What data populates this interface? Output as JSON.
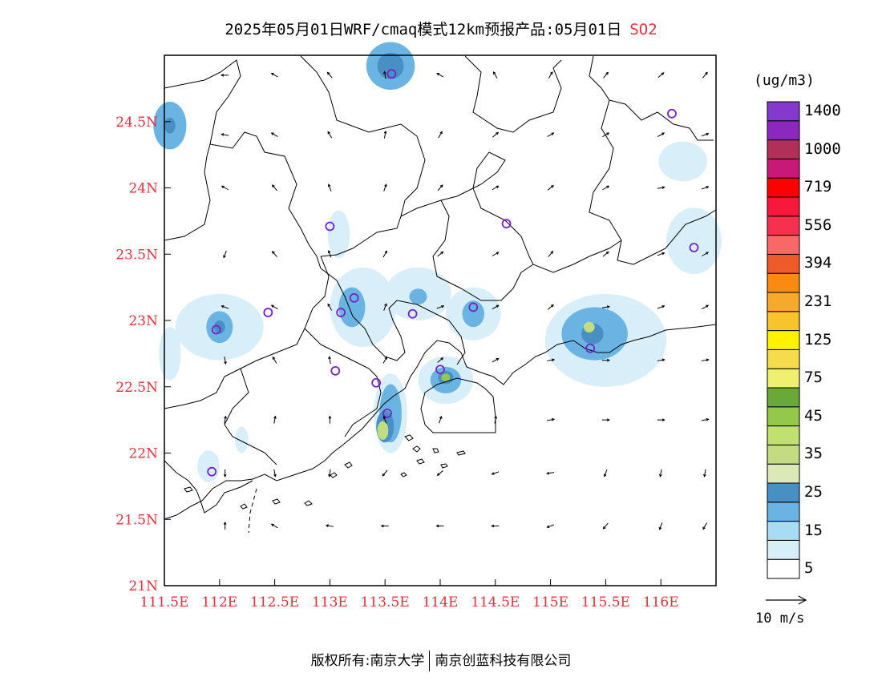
{
  "title": {
    "main": "2025年05月01日WRF/cmaq模式12km预报产品:05月01日",
    "pollutant": "SO2"
  },
  "axes": {
    "x_labels": [
      "111.5E",
      "112E",
      "112.5E",
      "113E",
      "113.5E",
      "114E",
      "114.5E",
      "115E",
      "115.5E",
      "116E"
    ],
    "y_labels": [
      "24.5N",
      "24N",
      "23.5N",
      "23N",
      "22.5N",
      "22N",
      "21.5N",
      "21N"
    ],
    "lon_range": [
      111.5,
      116.5
    ],
    "lat_range": [
      21.0,
      25.0
    ]
  },
  "legend": {
    "unit": "(ug/m3)",
    "labels": [
      "1400",
      "1000",
      "719",
      "556",
      "394",
      "231",
      "125",
      "75",
      "45",
      "35",
      "25",
      "15",
      "5"
    ],
    "colors": [
      "#ffffff",
      "#d8eef8",
      "#a8dcf4",
      "#6ab4e4",
      "#4890c4",
      "#dbe8b8",
      "#c3dc82",
      "#c0e070",
      "#94c84a",
      "#6aa83a",
      "#f0f070",
      "#f6dc4a",
      "#fef200",
      "#f8c42c",
      "#f8a82a",
      "#fa8a10",
      "#ee5a28",
      "#f86868",
      "#f83050",
      "#f8183c",
      "#ff0000",
      "#c81878",
      "#b0305a",
      "#8c28c0",
      "#8438cc"
    ]
  },
  "wind_reference": "10 m/s",
  "footer": {
    "left": "版权所有:南京大学",
    "right": "南京创蓝科技有限公司"
  },
  "colors": {
    "accent": "#e8303a",
    "station": "#7a20c8"
  },
  "stations": [
    [
      113.56,
      24.86
    ],
    [
      116.1,
      24.56
    ],
    [
      113.0,
      23.71
    ],
    [
      114.6,
      23.73
    ],
    [
      116.3,
      23.55
    ],
    [
      111.97,
      22.93
    ],
    [
      112.44,
      23.06
    ],
    [
      113.1,
      23.06
    ],
    [
      113.22,
      23.17
    ],
    [
      113.75,
      23.05
    ],
    [
      114.3,
      23.1
    ],
    [
      113.05,
      22.62
    ],
    [
      113.42,
      22.53
    ],
    [
      114.0,
      22.63
    ],
    [
      115.36,
      22.79
    ],
    [
      113.52,
      22.3
    ],
    [
      111.93,
      21.86
    ]
  ],
  "wind_vectors": [
    [
      112.05,
      24.85,
      270
    ],
    [
      112.5,
      24.85,
      300
    ],
    [
      113.0,
      24.85,
      320
    ],
    [
      113.5,
      24.85,
      350
    ],
    [
      114.0,
      24.85,
      300
    ],
    [
      114.5,
      24.85,
      330
    ],
    [
      115.0,
      24.85,
      30
    ],
    [
      115.5,
      24.85,
      40
    ],
    [
      116.0,
      24.85,
      50
    ],
    [
      116.4,
      24.85,
      40
    ],
    [
      112.05,
      24.4,
      280
    ],
    [
      112.5,
      24.4,
      300
    ],
    [
      113.0,
      24.4,
      330
    ],
    [
      113.5,
      24.4,
      10
    ],
    [
      114.0,
      24.4,
      30
    ],
    [
      114.5,
      24.4,
      50
    ],
    [
      115.0,
      24.4,
      60
    ],
    [
      115.5,
      24.4,
      60
    ],
    [
      116.0,
      24.4,
      60
    ],
    [
      116.4,
      24.4,
      70
    ],
    [
      112.05,
      24.0,
      300
    ],
    [
      112.5,
      24.0,
      320
    ],
    [
      113.0,
      24.0,
      340
    ],
    [
      113.5,
      24.0,
      20
    ],
    [
      114.0,
      24.0,
      40
    ],
    [
      114.5,
      24.0,
      60
    ],
    [
      115.0,
      24.0,
      50
    ],
    [
      115.5,
      24.0,
      60
    ],
    [
      116.0,
      24.0,
      80
    ],
    [
      116.4,
      24.0,
      70
    ],
    [
      112.05,
      23.5,
      200
    ],
    [
      112.5,
      23.5,
      320
    ],
    [
      113.0,
      23.5,
      340
    ],
    [
      113.5,
      23.5,
      30
    ],
    [
      114.0,
      23.5,
      50
    ],
    [
      114.5,
      23.5,
      60
    ],
    [
      115.0,
      23.5,
      40
    ],
    [
      115.5,
      23.5,
      50
    ],
    [
      116.0,
      23.5,
      70
    ],
    [
      116.4,
      23.5,
      60
    ],
    [
      112.05,
      23.1,
      290
    ],
    [
      112.5,
      23.1,
      300
    ],
    [
      113.0,
      23.1,
      330
    ],
    [
      113.5,
      23.1,
      20
    ],
    [
      114.0,
      23.1,
      70
    ],
    [
      114.5,
      23.1,
      60
    ],
    [
      115.0,
      23.1,
      50
    ],
    [
      115.5,
      23.1,
      80
    ],
    [
      116.0,
      23.1,
      70
    ],
    [
      116.4,
      23.1,
      60
    ],
    [
      112.05,
      22.7,
      170
    ],
    [
      112.5,
      22.7,
      330
    ],
    [
      113.0,
      22.7,
      350
    ],
    [
      113.5,
      22.7,
      30
    ],
    [
      114.0,
      22.7,
      50
    ],
    [
      114.5,
      22.7,
      60
    ],
    [
      115.0,
      22.7,
      80
    ],
    [
      115.5,
      22.7,
      90
    ],
    [
      116.0,
      22.7,
      80
    ],
    [
      116.4,
      22.7,
      80
    ],
    [
      112.05,
      22.25,
      10
    ],
    [
      112.5,
      22.25,
      10
    ],
    [
      113.0,
      22.25,
      0
    ],
    [
      113.5,
      22.25,
      340
    ],
    [
      114.0,
      22.25,
      20
    ],
    [
      114.5,
      22.25,
      10
    ],
    [
      115.0,
      22.25,
      80
    ],
    [
      115.5,
      22.25,
      90
    ],
    [
      116.0,
      22.25,
      90
    ],
    [
      116.4,
      22.25,
      80
    ],
    [
      112.05,
      21.85,
      180
    ],
    [
      112.5,
      21.85,
      170
    ],
    [
      113.0,
      21.85,
      190
    ],
    [
      113.5,
      21.85,
      220
    ],
    [
      114.0,
      21.85,
      230
    ],
    [
      114.5,
      21.85,
      250
    ],
    [
      115.0,
      21.85,
      260
    ],
    [
      115.5,
      21.85,
      200
    ],
    [
      116.0,
      21.85,
      190
    ],
    [
      116.4,
      21.85,
      190
    ],
    [
      112.05,
      21.45,
      0
    ],
    [
      112.5,
      21.45,
      300
    ],
    [
      113.0,
      21.45,
      280
    ],
    [
      113.5,
      21.45,
      270
    ],
    [
      114.0,
      21.45,
      270
    ],
    [
      114.5,
      21.45,
      270
    ],
    [
      115.0,
      21.45,
      250
    ],
    [
      115.5,
      21.45,
      220
    ],
    [
      116.0,
      21.45,
      200
    ],
    [
      116.4,
      21.45,
      210
    ]
  ],
  "concentration_blobs": [
    [
      113.55,
      24.92,
      0.22,
      0.18,
      15
    ],
    [
      113.55,
      24.92,
      0.12,
      0.1,
      25
    ],
    [
      111.55,
      24.47,
      0.15,
      0.18,
      15
    ],
    [
      111.55,
      24.47,
      0.05,
      0.06,
      25
    ],
    [
      116.2,
      24.2,
      0.22,
      0.15,
      5
    ],
    [
      116.3,
      23.6,
      0.25,
      0.25,
      5
    ],
    [
      113.08,
      23.65,
      0.1,
      0.18,
      5
    ],
    [
      112.0,
      22.95,
      0.4,
      0.25,
      5
    ],
    [
      112.0,
      22.95,
      0.12,
      0.12,
      15
    ],
    [
      112.0,
      22.95,
      0.05,
      0.05,
      25
    ],
    [
      113.3,
      23.1,
      0.3,
      0.3,
      5
    ],
    [
      113.2,
      23.1,
      0.12,
      0.15,
      15
    ],
    [
      113.8,
      23.2,
      0.3,
      0.2,
      5
    ],
    [
      113.8,
      23.18,
      0.08,
      0.06,
      15
    ],
    [
      114.3,
      23.05,
      0.25,
      0.2,
      5
    ],
    [
      114.3,
      23.05,
      0.1,
      0.1,
      15
    ],
    [
      115.5,
      22.85,
      0.55,
      0.35,
      5
    ],
    [
      115.4,
      22.9,
      0.3,
      0.2,
      15
    ],
    [
      115.38,
      22.9,
      0.1,
      0.08,
      25
    ],
    [
      115.35,
      22.95,
      0.05,
      0.04,
      35
    ],
    [
      114.05,
      22.55,
      0.25,
      0.18,
      5
    ],
    [
      114.05,
      22.55,
      0.14,
      0.1,
      15
    ],
    [
      114.05,
      22.57,
      0.07,
      0.05,
      25
    ],
    [
      114.05,
      22.57,
      0.04,
      0.03,
      45
    ],
    [
      113.55,
      22.3,
      0.15,
      0.3,
      5
    ],
    [
      113.55,
      22.3,
      0.1,
      0.22,
      15
    ],
    [
      113.5,
      22.2,
      0.08,
      0.12,
      25
    ],
    [
      113.48,
      22.17,
      0.05,
      0.07,
      35
    ],
    [
      111.55,
      22.75,
      0.1,
      0.2,
      5
    ],
    [
      111.9,
      21.9,
      0.1,
      0.12,
      5
    ],
    [
      112.2,
      22.1,
      0.06,
      0.1,
      5
    ]
  ]
}
